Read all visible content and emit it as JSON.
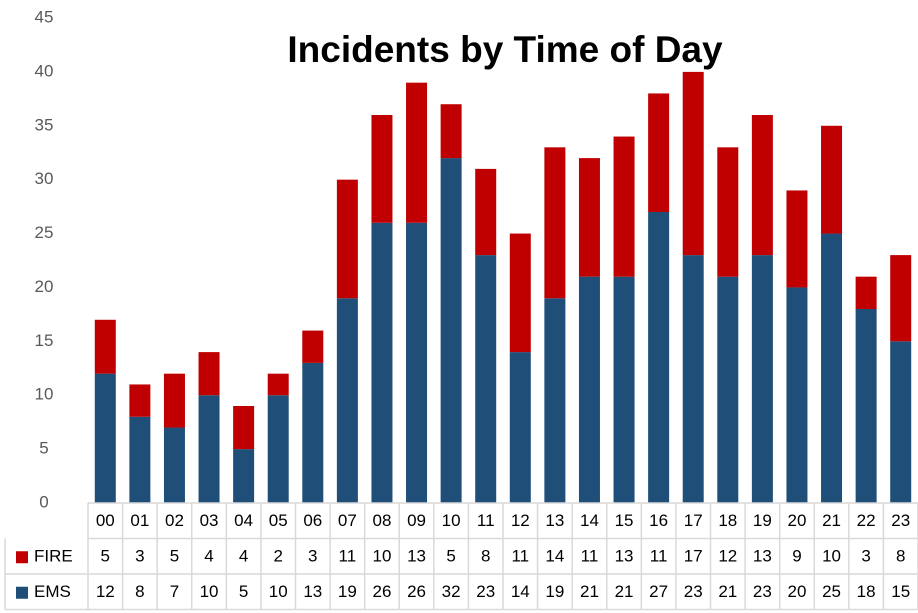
{
  "chart_data": {
    "type": "bar",
    "stacked": true,
    "title": "Incidents by Time of Day",
    "categories": [
      "00",
      "01",
      "02",
      "03",
      "04",
      "05",
      "06",
      "07",
      "08",
      "09",
      "10",
      "11",
      "12",
      "13",
      "14",
      "15",
      "16",
      "17",
      "18",
      "19",
      "20",
      "21",
      "22",
      "23"
    ],
    "series": [
      {
        "name": "EMS",
        "color": "#1f4e79",
        "values": [
          12,
          8,
          7,
          10,
          5,
          10,
          13,
          19,
          26,
          26,
          32,
          23,
          14,
          19,
          21,
          21,
          27,
          23,
          21,
          23,
          20,
          25,
          18,
          15
        ]
      },
      {
        "name": "FIRE",
        "color": "#c00000",
        "values": [
          5,
          3,
          5,
          4,
          4,
          2,
          3,
          11,
          10,
          13,
          5,
          8,
          11,
          14,
          11,
          13,
          11,
          17,
          12,
          13,
          9,
          10,
          3,
          8
        ]
      }
    ],
    "ylim": [
      0,
      45
    ],
    "yticks": [
      0,
      5,
      10,
      15,
      20,
      25,
      30,
      35,
      40,
      45
    ],
    "grid": false
  }
}
